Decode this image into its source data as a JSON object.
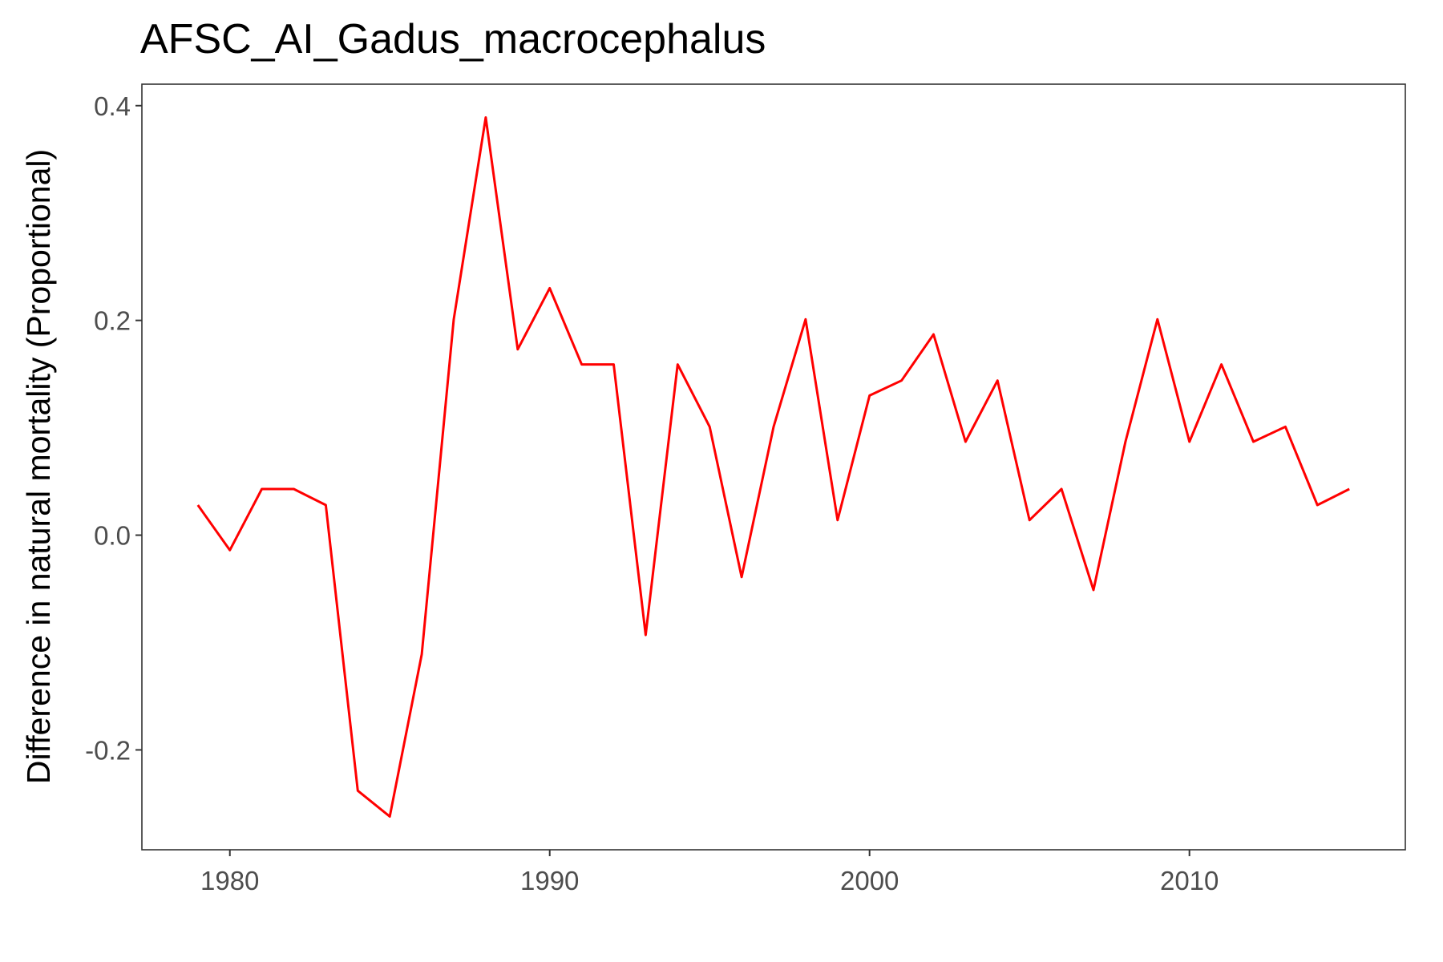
{
  "chart_data": {
    "type": "line",
    "title": "AFSC_AI_Gadus_macrocephalus",
    "xlabel": "",
    "ylabel": "Difference in natural mortality (Proportional)",
    "xlim": [
      1977.25,
      2016.75
    ],
    "ylim": [
      -0.293,
      0.42
    ],
    "x_ticks": [
      1980,
      1990,
      2000,
      2010
    ],
    "x_tick_labels": [
      "1980",
      "1990",
      "2000",
      "2010"
    ],
    "y_ticks": [
      -0.2,
      0.0,
      0.2,
      0.4
    ],
    "y_tick_labels": [
      "-0.2",
      "0.0",
      "0.2",
      "0.4"
    ],
    "grid": false,
    "legend": "none",
    "series": [
      {
        "color": "#ff0000",
        "x": [
          1979,
          1980,
          1981,
          1982,
          1983,
          1984,
          1985,
          1986,
          1987,
          1988,
          1989,
          1990,
          1991,
          1992,
          1993,
          1994,
          1995,
          1996,
          1997,
          1998,
          1999,
          2000,
          2001,
          2002,
          2003,
          2004,
          2005,
          2006,
          2007,
          2008,
          2009,
          2010,
          2011,
          2012,
          2013,
          2014,
          2015
        ],
        "y": [
          0.028,
          -0.014,
          0.043,
          0.043,
          0.028,
          -0.238,
          -0.262,
          -0.111,
          0.201,
          0.389,
          0.173,
          0.23,
          0.159,
          0.159,
          -0.093,
          0.159,
          0.101,
          -0.039,
          0.101,
          0.201,
          0.014,
          0.13,
          0.144,
          0.187,
          0.087,
          0.144,
          0.014,
          0.043,
          -0.051,
          0.087,
          0.201,
          0.087,
          0.159,
          0.087,
          0.101,
          0.028,
          0.043
        ]
      }
    ]
  }
}
